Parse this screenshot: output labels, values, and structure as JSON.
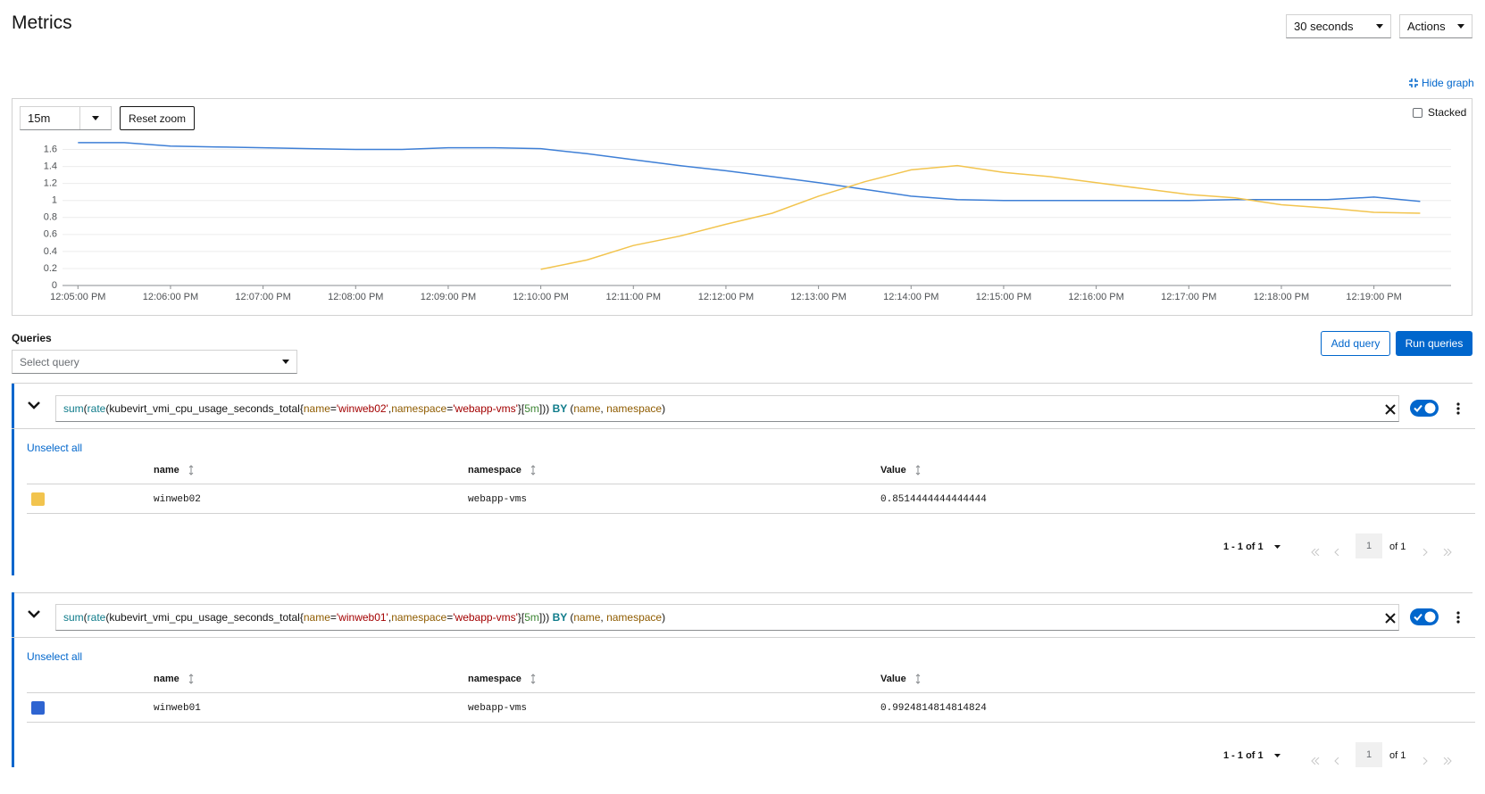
{
  "header": {
    "title": "Metrics",
    "refresh_interval": "30 seconds",
    "actions": "Actions"
  },
  "graph_controls": {
    "hide_graph": "Hide graph",
    "time_range": "15m",
    "reset_zoom": "Reset zoom",
    "stacked": "Stacked"
  },
  "chart_data": {
    "type": "line",
    "x": [
      "12:05:00 PM",
      "12:05:30 PM",
      "12:06:00 PM",
      "12:06:30 PM",
      "12:07:00 PM",
      "12:07:30 PM",
      "12:08:00 PM",
      "12:08:30 PM",
      "12:09:00 PM",
      "12:09:30 PM",
      "12:10:00 PM",
      "12:10:30 PM",
      "12:11:00 PM",
      "12:11:30 PM",
      "12:12:00 PM",
      "12:12:30 PM",
      "12:13:00 PM",
      "12:13:30 PM",
      "12:14:00 PM",
      "12:14:30 PM",
      "12:15:00 PM",
      "12:15:30 PM",
      "12:16:00 PM",
      "12:16:30 PM",
      "12:17:00 PM",
      "12:17:30 PM",
      "12:18:00 PM",
      "12:18:30 PM",
      "12:19:00 PM",
      "12:19:30 PM"
    ],
    "series": [
      {
        "color": "#3e7fd6",
        "values": [
          1.68,
          1.68,
          1.64,
          1.63,
          1.62,
          1.61,
          1.6,
          1.6,
          1.62,
          1.62,
          1.61,
          1.55,
          1.48,
          1.41,
          1.35,
          1.28,
          1.21,
          1.13,
          1.05,
          1.01,
          1.0,
          1.0,
          1.0,
          1.0,
          1.0,
          1.01,
          1.01,
          1.01,
          1.04,
          0.99
        ]
      },
      {
        "color": "#f2c44e",
        "values": [
          null,
          null,
          null,
          null,
          null,
          null,
          null,
          null,
          null,
          null,
          0.19,
          0.3,
          0.47,
          0.58,
          0.72,
          0.85,
          1.05,
          1.22,
          1.36,
          1.41,
          1.33,
          1.28,
          1.21,
          1.14,
          1.07,
          1.03,
          0.95,
          0.91,
          0.86,
          0.85
        ]
      }
    ],
    "xlim": [
      "12:04:50 PM",
      "12:19:50 PM"
    ],
    "xticks": [
      "12:05:00 PM",
      "12:06:00 PM",
      "12:07:00 PM",
      "12:08:00 PM",
      "12:09:00 PM",
      "12:10:00 PM",
      "12:11:00 PM",
      "12:12:00 PM",
      "12:13:00 PM",
      "12:14:00 PM",
      "12:15:00 PM",
      "12:16:00 PM",
      "12:17:00 PM",
      "12:18:00 PM",
      "12:19:00 PM"
    ],
    "ylim": [
      0,
      1.7
    ],
    "yticks": [
      0,
      0.2,
      0.4,
      0.6,
      0.8,
      1,
      1.2,
      1.4,
      1.6
    ],
    "grid": true
  },
  "queries": {
    "title": "Queries",
    "select_placeholder": "Select query",
    "add_query": "Add query",
    "run_queries": "Run queries",
    "items": [
      {
        "expression": [
          "sum",
          "(",
          "rate",
          "(",
          "kubevirt_vmi_cpu_usage_seconds_total",
          "{",
          "name",
          "=",
          "'winweb02'",
          ",",
          "namespace",
          "=",
          "'webapp-vms'",
          "}",
          "[",
          "5m",
          "]",
          "))",
          " BY ",
          "(",
          "name",
          ", ",
          "namespace",
          ")"
        ],
        "unselect_all": "Unselect all",
        "columns": [
          "name",
          "namespace",
          "Value"
        ],
        "rows": [
          {
            "color": "#f2c44e",
            "cells": [
              "winweb02",
              "webapp-vms",
              "0.8514444444444444"
            ]
          }
        ],
        "pagination": {
          "range": "1 - 1 of 1",
          "page": "1",
          "of": "of 1"
        }
      },
      {
        "expression": [
          "sum",
          "(",
          "rate",
          "(",
          "kubevirt_vmi_cpu_usage_seconds_total",
          "{",
          "name",
          "=",
          "'winweb01'",
          ",",
          "namespace",
          "=",
          "'webapp-vms'",
          "}",
          "[",
          "5m",
          "]",
          "))",
          " BY ",
          "(",
          "name",
          ", ",
          "namespace",
          ")"
        ],
        "unselect_all": "Unselect all",
        "columns": [
          "name",
          "namespace",
          "Value"
        ],
        "rows": [
          {
            "color": "#2e64d1",
            "cells": [
              "winweb01",
              "webapp-vms",
              "0.9924814814814824"
            ]
          }
        ],
        "pagination": {
          "range": "1 - 1 of 1",
          "page": "1",
          "of": "of 1"
        }
      }
    ]
  }
}
